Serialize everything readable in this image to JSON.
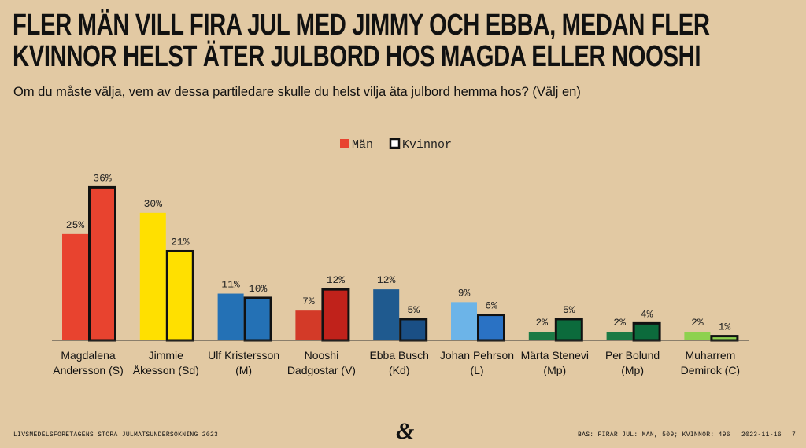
{
  "chart_data": {
    "type": "bar",
    "title": "FLER MÄN VILL FIRA JUL MED JIMMY OCH EBBA, MEDAN FLER\nKVINNOR HELST ÄTER JULBORD HOS MAGDA ELLER NOOSHI",
    "subtitle": "Om du måste välja, vem av dessa partiledare skulle du helst vilja äta julbord hemma hos? (Välj en)",
    "categories": [
      "Magdalena\nAndersson (S)",
      "Jimmie\nÅkesson (Sd)",
      "Ulf Kristersson\n(M)",
      "Nooshi\nDadgostar (V)",
      "Ebba Busch\n(Kd)",
      "Johan Pehrson\n(L)",
      "Märta Stenevi\n(Mp)",
      "Per Bolund\n(Mp)",
      "Muharrem\nDemirok (C)"
    ],
    "series": [
      {
        "name": "Män",
        "color": "#e8432f",
        "colors": [
          "#e8432f",
          "#ffe000",
          "#2471b5",
          "#d33a28",
          "#1f5a8f",
          "#6cb4e8",
          "#1b7a45",
          "#1b7a45",
          "#8ed14f"
        ],
        "values": [
          25,
          30,
          11,
          7,
          12,
          9,
          2,
          2,
          2
        ],
        "value_labels": [
          "25%",
          "30%",
          "11%",
          "7%",
          "12%",
          "9%",
          "2%",
          "2%",
          "2%"
        ]
      },
      {
        "name": "Kvinnor",
        "color": "#ffffff",
        "colors": [
          "#e8432f",
          "#ffe000",
          "#2471b5",
          "#c0221b",
          "#1a4f85",
          "#2a72c4",
          "#0c6b3c",
          "#0c6b3c",
          "#8ed14f"
        ],
        "values": [
          36,
          21,
          10,
          12,
          5,
          6,
          5,
          4,
          1
        ],
        "value_labels": [
          "36%",
          "21%",
          "10%",
          "12%",
          "5%",
          "6%",
          "5%",
          "4%",
          "1%"
        ]
      }
    ],
    "ylim": [
      0,
      37
    ],
    "footer_left": "LIVSMEDELSFÖRETAGENS STORA JULMATSUNDERSÖKNING 2023",
    "logo": "&",
    "footer_base": "BAS: FIRAR JUL: MÄN, 509; KVINNOR: 496",
    "footer_date": "2023-11-16",
    "page_number": "7"
  }
}
